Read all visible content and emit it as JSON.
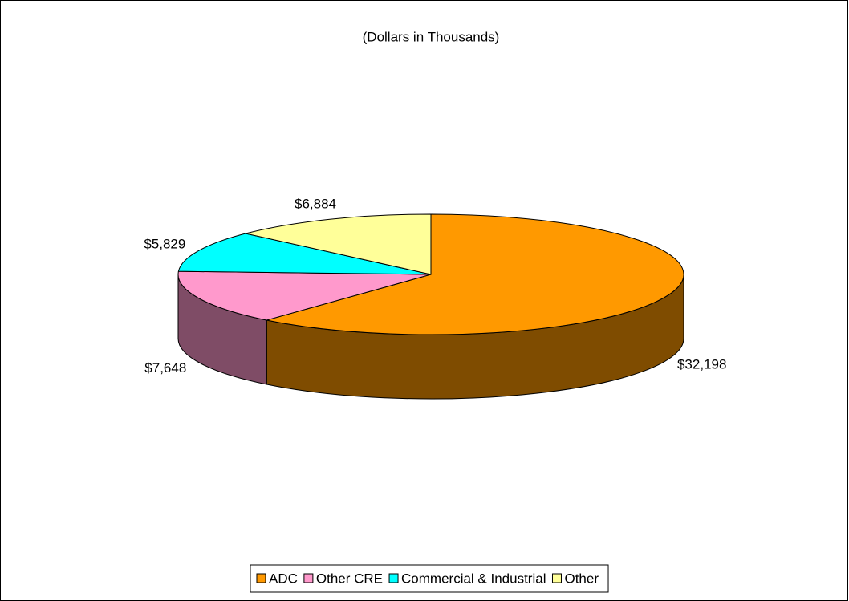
{
  "chart_data": {
    "type": "pie3d",
    "title": "(Dollars in Thousands)",
    "categories": [
      "ADC",
      "Other CRE",
      "Commercial & Industrial",
      "Other"
    ],
    "values": [
      32198,
      7648,
      5829,
      6884
    ],
    "value_labels": [
      "$32,198",
      "$7,648",
      "$5,829",
      "$6,884"
    ],
    "colors": [
      "#ff9900",
      "#ff99cc",
      "#00ffff",
      "#ffff99"
    ],
    "side_colors": [
      "#7f4c00",
      "#7f4c66",
      "#007f7f",
      "#7f7f4c"
    ],
    "legend": "bottom"
  }
}
